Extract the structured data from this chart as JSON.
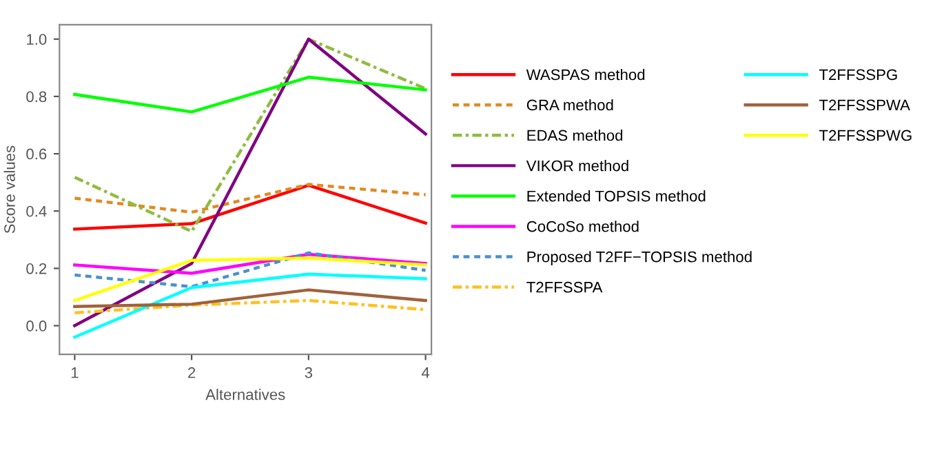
{
  "chart_data": {
    "type": "line",
    "xlabel": "Alternatives",
    "ylabel": "Score values",
    "x": [
      1,
      2,
      3,
      4
    ],
    "xlim": [
      0.87,
      4.05
    ],
    "xticks": [
      1,
      2,
      3,
      4
    ],
    "ylim": [
      -0.1,
      1.05
    ],
    "yticks": [
      {
        "value": 0,
        "label": "0.0"
      },
      0.2,
      0.4,
      0.6,
      0.8,
      {
        "value": 1,
        "label": "1.0"
      }
    ],
    "legend": "right",
    "grid": false,
    "series": [
      {
        "name": "WASPAS method",
        "color": "#ff0000",
        "line_style": "solid",
        "values": [
          0.337,
          0.356,
          0.49,
          0.358
        ]
      },
      {
        "name": "GRA method",
        "color": "#e08a20",
        "line_style": "dashed",
        "values": [
          0.445,
          0.396,
          0.493,
          0.457
        ]
      },
      {
        "name": "EDAS method",
        "color": "#8fbc3f",
        "line_style": "dashdot",
        "values": [
          0.518,
          0.329,
          1.0,
          0.827
        ]
      },
      {
        "name": "VIKOR method",
        "color": "#800080",
        "line_style": "solid",
        "values": [
          0.0,
          0.217,
          1.0,
          0.669
        ]
      },
      {
        "name": "Extended TOPSIS method",
        "color": "#00ff00",
        "line_style": "solid",
        "values": [
          0.807,
          0.746,
          0.867,
          0.823
        ]
      },
      {
        "name": "CoCoSo method",
        "color": "#ff00ff",
        "line_style": "solid",
        "values": [
          0.212,
          0.183,
          0.249,
          0.217
        ]
      },
      {
        "name": "Proposed T2FF−TOPSIS method",
        "color": "#4a90d0",
        "line_style": "dashed",
        "values": [
          0.177,
          0.136,
          0.254,
          0.193
        ]
      },
      {
        "name": "T2FFSSPA",
        "color": "#ffc020",
        "line_style": "dashdot",
        "values": [
          0.045,
          0.072,
          0.088,
          0.056
        ]
      },
      {
        "name": "T2FFSSPG",
        "color": "#00ffff",
        "line_style": "solid",
        "values": [
          -0.04,
          0.133,
          0.18,
          0.164
        ]
      },
      {
        "name": "T2FFSSPWA",
        "color": "#a0623a",
        "line_style": "solid",
        "values": [
          0.067,
          0.075,
          0.125,
          0.088
        ]
      },
      {
        "name": "T2FFSSPWG",
        "color": "#ffff00",
        "line_style": "solid",
        "values": [
          0.088,
          0.228,
          0.236,
          0.212
        ]
      }
    ]
  }
}
